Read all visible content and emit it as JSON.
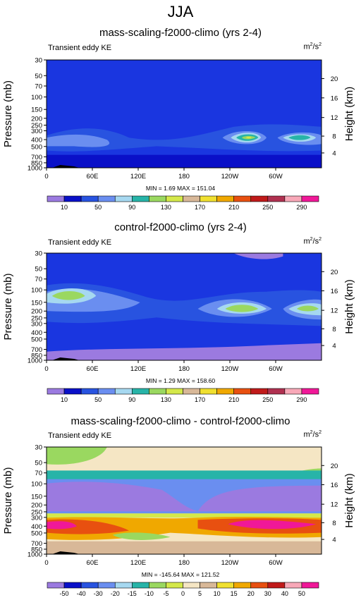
{
  "title": "JJA",
  "colors": {
    "background": "#ffffff",
    "panel1_fill": "#1a36e0",
    "panel2_fill": "#1a36e0",
    "panel3_fill": "#f5e6c4"
  },
  "chart_data": [
    {
      "type": "heatmap",
      "title": "mass-scaling-f2000-climo (yrs 2-4)",
      "variable": "Transient eddy KE",
      "units": "m2/s2",
      "units_base": "m",
      "units_exp": "2",
      "units_per": "/s",
      "units_per_exp": "2",
      "ylabel": "Pressure (mb)",
      "ylabel_right": "Height (km)",
      "x_ticks": [
        "0",
        "60E",
        "120E",
        "180",
        "120W",
        "60W"
      ],
      "y_ticks": [
        "30",
        "50",
        "70",
        "100",
        "150",
        "200",
        "250",
        "300",
        "400",
        "500",
        "700",
        "850",
        "1000"
      ],
      "y_right_ticks": [
        "20",
        "16",
        "12",
        "8",
        "4"
      ],
      "stats": "MIN =   1.69  MAX = 151.04",
      "min": 1.69,
      "max": 151.04,
      "colorbar": {
        "labels": [
          "10",
          "50",
          "90",
          "130",
          "170",
          "210",
          "250",
          "290"
        ],
        "colors": [
          "#9b7ae0",
          "#0a10c8",
          "#2853e0",
          "#6a8ef0",
          "#a6d8f0",
          "#27b4a8",
          "#9ad860",
          "#d4e84a",
          "#d8b898",
          "#f0e030",
          "#f0a800",
          "#e85010",
          "#c01a1a",
          "#b03050",
          "#f8a8b8",
          "#f01898"
        ]
      }
    },
    {
      "type": "heatmap",
      "title": "control-f2000-climo (yrs 2-4)",
      "variable": "Transient eddy KE",
      "units": "m2/s2",
      "units_base": "m",
      "units_exp": "2",
      "units_per": "/s",
      "units_per_exp": "2",
      "ylabel": "Pressure (mb)",
      "ylabel_right": "Height (km)",
      "x_ticks": [
        "0",
        "60E",
        "120E",
        "180",
        "120W",
        "60W"
      ],
      "y_ticks": [
        "30",
        "50",
        "70",
        "100",
        "150",
        "200",
        "250",
        "300",
        "400",
        "500",
        "700",
        "850",
        "1000"
      ],
      "y_right_ticks": [
        "20",
        "16",
        "12",
        "8",
        "4"
      ],
      "stats": "MIN =   1.29  MAX = 158.60",
      "min": 1.29,
      "max": 158.6,
      "colorbar": {
        "labels": [
          "10",
          "50",
          "90",
          "130",
          "170",
          "210",
          "250",
          "290"
        ],
        "colors": [
          "#9b7ae0",
          "#0a10c8",
          "#2853e0",
          "#6a8ef0",
          "#a6d8f0",
          "#27b4a8",
          "#9ad860",
          "#d4e84a",
          "#d8b898",
          "#f0e030",
          "#f0a800",
          "#e85010",
          "#c01a1a",
          "#b03050",
          "#f8a8b8",
          "#f01898"
        ]
      }
    },
    {
      "type": "heatmap",
      "title": "mass-scaling-f2000-climo - control-f2000-climo",
      "variable": "Transient eddy KE",
      "units": "m2/s2",
      "units_base": "m",
      "units_exp": "2",
      "units_per": "/s",
      "units_per_exp": "2",
      "ylabel": "Pressure (mb)",
      "ylabel_right": "Height (km)",
      "x_ticks": [
        "0",
        "60E",
        "120E",
        "180",
        "120W",
        "60W"
      ],
      "y_ticks": [
        "30",
        "50",
        "70",
        "100",
        "150",
        "200",
        "250",
        "300",
        "400",
        "500",
        "700",
        "850",
        "1000"
      ],
      "y_right_ticks": [
        "20",
        "16",
        "12",
        "8",
        "4"
      ],
      "stats": "MIN = -145.64  MAX = 121.52",
      "min": -145.64,
      "max": 121.52,
      "colorbar": {
        "labels": [
          "-50",
          "-40",
          "-30",
          "-20",
          "-15",
          "-10",
          "-5",
          "0",
          "5",
          "10",
          "15",
          "20",
          "30",
          "40",
          "50"
        ],
        "colors": [
          "#9b7ae0",
          "#0a10c8",
          "#2853e0",
          "#6a8ef0",
          "#a6d8f0",
          "#27b4a8",
          "#9ad860",
          "#d4e84a",
          "#f5e6c4",
          "#d8b898",
          "#f0e030",
          "#f0a800",
          "#e85010",
          "#c01a1a",
          "#f8a8b8",
          "#f01898"
        ]
      }
    }
  ]
}
